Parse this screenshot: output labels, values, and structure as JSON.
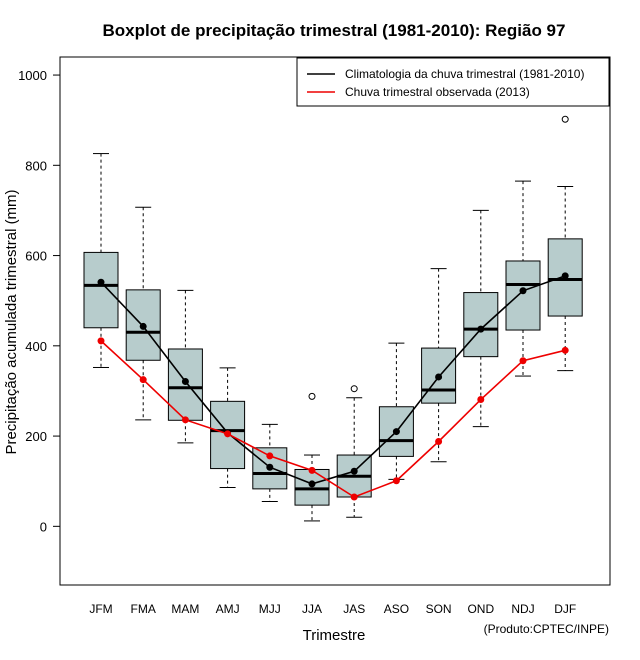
{
  "chart_data": {
    "type": "boxplot",
    "title": "Boxplot de precipitação trimestral (1981-2010): Região 97",
    "xlabel": "Trimestre",
    "ylabel": "Precipitação acumulada trimestral (mm)",
    "ylim": [
      -130,
      1040
    ],
    "yticks": [
      0,
      200,
      400,
      600,
      800,
      1000
    ],
    "categories": [
      "JFM",
      "FMA",
      "MAM",
      "AMJ",
      "MJJ",
      "JJA",
      "JAS",
      "ASO",
      "SON",
      "OND",
      "NDJ",
      "DJF"
    ],
    "boxes": [
      {
        "min": 352,
        "q1": 440,
        "median": 534,
        "q3": 607,
        "max": 826,
        "outliers": []
      },
      {
        "min": 236,
        "q1": 368,
        "median": 430,
        "q3": 524,
        "max": 707,
        "outliers": []
      },
      {
        "min": 185,
        "q1": 235,
        "median": 307,
        "q3": 393,
        "max": 523,
        "outliers": []
      },
      {
        "min": 86,
        "q1": 128,
        "median": 212,
        "q3": 277,
        "max": 351,
        "outliers": []
      },
      {
        "min": 55,
        "q1": 83,
        "median": 117,
        "q3": 174,
        "max": 226,
        "outliers": []
      },
      {
        "min": 12,
        "q1": 47,
        "median": 83,
        "q3": 126,
        "max": 158,
        "outliers": [
          288
        ]
      },
      {
        "min": 20,
        "q1": 65,
        "median": 111,
        "q3": 158,
        "max": 285,
        "outliers": [
          305
        ]
      },
      {
        "min": 104,
        "q1": 155,
        "median": 190,
        "q3": 265,
        "max": 406,
        "outliers": []
      },
      {
        "min": 143,
        "q1": 273,
        "median": 302,
        "q3": 395,
        "max": 571,
        "outliers": []
      },
      {
        "min": 221,
        "q1": 376,
        "median": 437,
        "q3": 518,
        "max": 700,
        "outliers": []
      },
      {
        "min": 333,
        "q1": 435,
        "median": 536,
        "q3": 588,
        "max": 765,
        "outliers": []
      },
      {
        "min": 345,
        "q1": 466,
        "median": 547,
        "q3": 637,
        "max": 753,
        "outliers": [
          902
        ]
      }
    ],
    "series": [
      {
        "name": "Climatologia da chuva trimestral (1981-2010)",
        "color": "#000000",
        "values": [
          541,
          443,
          321,
          207,
          131,
          94,
          122,
          210,
          331,
          437,
          522,
          555
        ]
      },
      {
        "name": "Chuva trimestral observada (2013)",
        "color": "#ee0000",
        "values": [
          411,
          325,
          236,
          205,
          156,
          124,
          65,
          101,
          188,
          281,
          367,
          390
        ]
      }
    ],
    "legend_position": "top-right",
    "box_fill": "#b7cccc",
    "credit": "(Produto:CPTEC/INPE)"
  }
}
